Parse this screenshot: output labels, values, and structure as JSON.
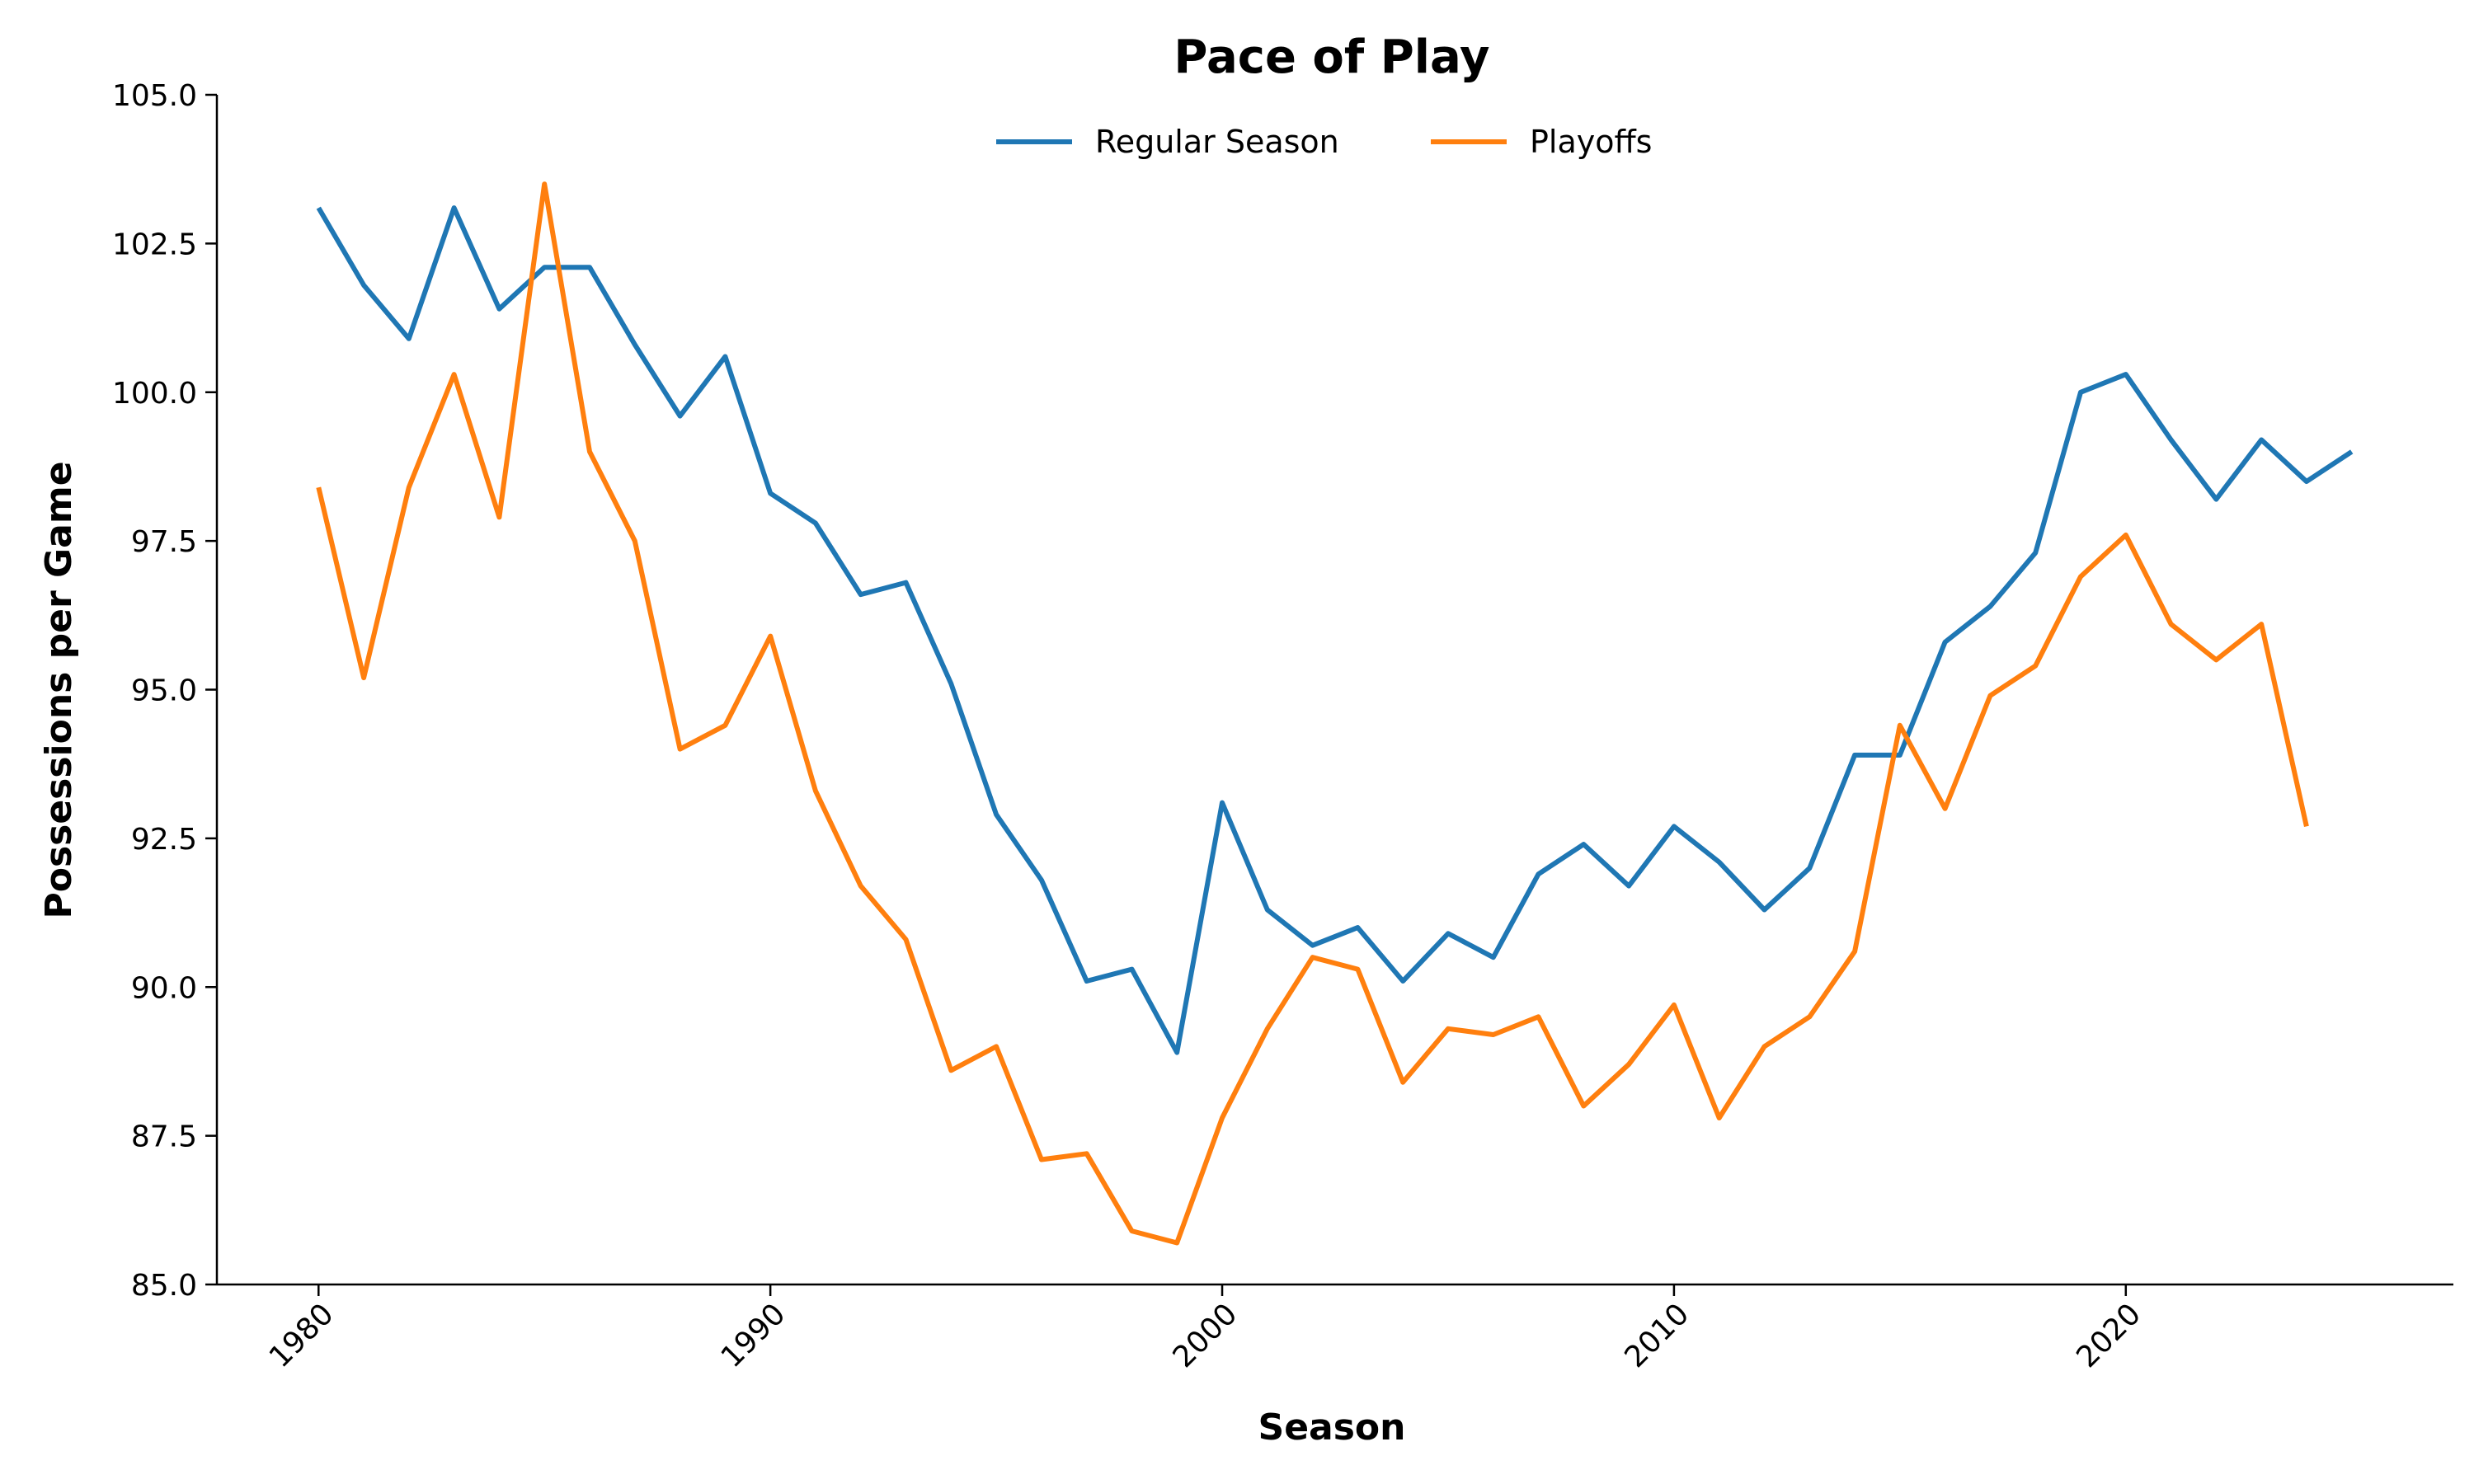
{
  "chart_data": {
    "type": "line",
    "title": "Pace of Play",
    "xlabel": "Season",
    "ylabel": "Possessions per Game",
    "xlim": [
      1977.75,
      2027.25
    ],
    "ylim": [
      85.0,
      105.0
    ],
    "xticks": [
      1980,
      1990,
      2000,
      2010,
      2020
    ],
    "xtick_labels": [
      "1980",
      "1990",
      "2000",
      "2010",
      "2020"
    ],
    "yticks": [
      85.0,
      87.5,
      90.0,
      92.5,
      95.0,
      97.5,
      100.0,
      102.5,
      105.0
    ],
    "ytick_labels": [
      "85.0",
      "87.5",
      "90.0",
      "92.5",
      "95.0",
      "97.5",
      "100.0",
      "102.5",
      "105.0"
    ],
    "grid": false,
    "legend": "top-center",
    "series": [
      {
        "name": "Regular Season",
        "color": "#1f77b4",
        "x": [
          1980,
          1981,
          1982,
          1983,
          1984,
          1985,
          1986,
          1987,
          1988,
          1989,
          1990,
          1991,
          1992,
          1993,
          1994,
          1995,
          1996,
          1997,
          1998,
          1999,
          2000,
          2001,
          2002,
          2003,
          2004,
          2005,
          2006,
          2007,
          2008,
          2009,
          2010,
          2011,
          2012,
          2013,
          2014,
          2015,
          2016,
          2017,
          2018,
          2019,
          2020,
          2021,
          2022,
          2023,
          2024,
          2025
        ],
        "values": [
          103.1,
          101.8,
          100.9,
          103.1,
          101.4,
          102.1,
          102.1,
          100.8,
          99.6,
          100.6,
          98.3,
          97.8,
          96.6,
          96.8,
          95.1,
          92.9,
          91.8,
          90.1,
          90.3,
          88.9,
          93.1,
          91.3,
          90.7,
          91.0,
          90.1,
          90.9,
          90.5,
          91.9,
          92.4,
          91.7,
          92.7,
          92.1,
          91.3,
          92.0,
          93.9,
          93.9,
          95.8,
          96.4,
          97.3,
          100.0,
          100.3,
          99.2,
          98.2,
          99.2,
          98.5,
          99.0
        ]
      },
      {
        "name": "Playoffs",
        "color": "#ff7f0e",
        "x": [
          1980,
          1981,
          1982,
          1983,
          1984,
          1985,
          1986,
          1987,
          1988,
          1989,
          1990,
          1991,
          1992,
          1993,
          1994,
          1995,
          1996,
          1997,
          1998,
          1999,
          2000,
          2001,
          2002,
          2003,
          2004,
          2005,
          2006,
          2007,
          2008,
          2009,
          2010,
          2011,
          2012,
          2013,
          2014,
          2015,
          2016,
          2017,
          2018,
          2019,
          2020,
          2021,
          2022,
          2023,
          2024
        ],
        "values": [
          98.4,
          95.2,
          98.4,
          100.3,
          97.9,
          103.5,
          99.0,
          97.5,
          94.0,
          94.4,
          95.9,
          93.3,
          91.7,
          90.8,
          88.6,
          89.0,
          87.1,
          87.2,
          85.9,
          85.7,
          87.8,
          89.3,
          90.5,
          90.3,
          88.4,
          89.3,
          89.2,
          89.5,
          88.0,
          88.7,
          89.7,
          87.8,
          89.0,
          89.5,
          90.6,
          94.4,
          93.0,
          94.9,
          95.4,
          96.9,
          97.6,
          96.1,
          95.5,
          96.1,
          92.7
        ]
      }
    ]
  }
}
